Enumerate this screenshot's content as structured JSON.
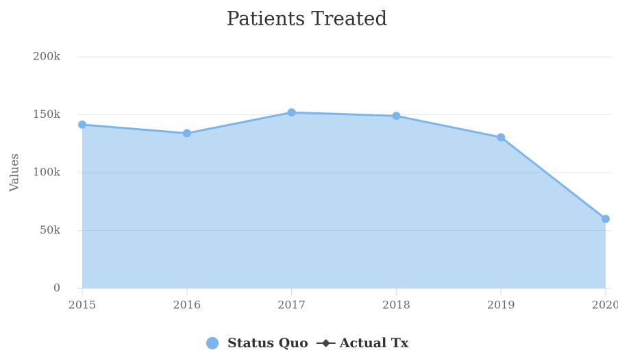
{
  "chart_data": {
    "type": "area",
    "title": "Patients Treated",
    "y_label": "Values",
    "categories": [
      "2015",
      "2016",
      "2017",
      "2018",
      "2019",
      "2020"
    ],
    "series": [
      {
        "name": "Status Quo",
        "color": "#7cb5ec",
        "values": [
          141500,
          134000,
          152000,
          149000,
          130500,
          60000
        ]
      },
      {
        "name": "Actual Tx",
        "color": "#434348",
        "values": [
          null,
          null,
          null,
          null,
          null,
          null
        ]
      }
    ],
    "ylim": [
      0,
      200000
    ],
    "yticks": [
      0,
      {
        "value": 50000,
        "label": "50k"
      },
      {
        "value": 100000,
        "label": "100k"
      },
      {
        "value": 150000,
        "label": "150k"
      },
      {
        "value": 200000,
        "label": "200k"
      }
    ],
    "grid": true,
    "legend": "bottom"
  }
}
